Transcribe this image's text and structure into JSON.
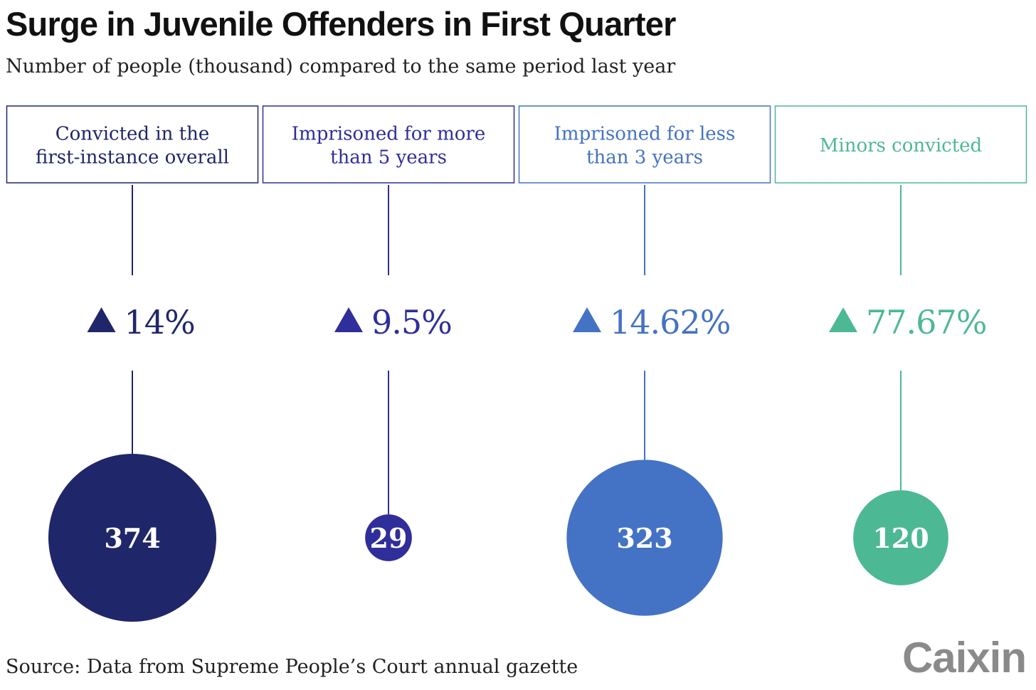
{
  "header": {
    "title": "Surge in Juvenile Offenders in First Quarter",
    "subtitle": "Number of people (thousand) compared to the same period last year"
  },
  "chart_data": {
    "type": "bubble",
    "categories": [
      "Convicted in the first-instance overall",
      "Imprisoned for more than 5 years",
      "Imprisoned for less than 3 years",
      "Minors convicted"
    ],
    "values": [
      374,
      29,
      323,
      120
    ],
    "changes": [
      "14%",
      "9.5%",
      "14.62%",
      "77.67%"
    ],
    "unit": "thousand",
    "colors": [
      "#1f2669",
      "#2f2e9a",
      "#4472c4",
      "#4db894"
    ]
  },
  "footer": {
    "source": "Source: Data from Supreme People’s Court annual gazette",
    "logo": "Caixin"
  }
}
